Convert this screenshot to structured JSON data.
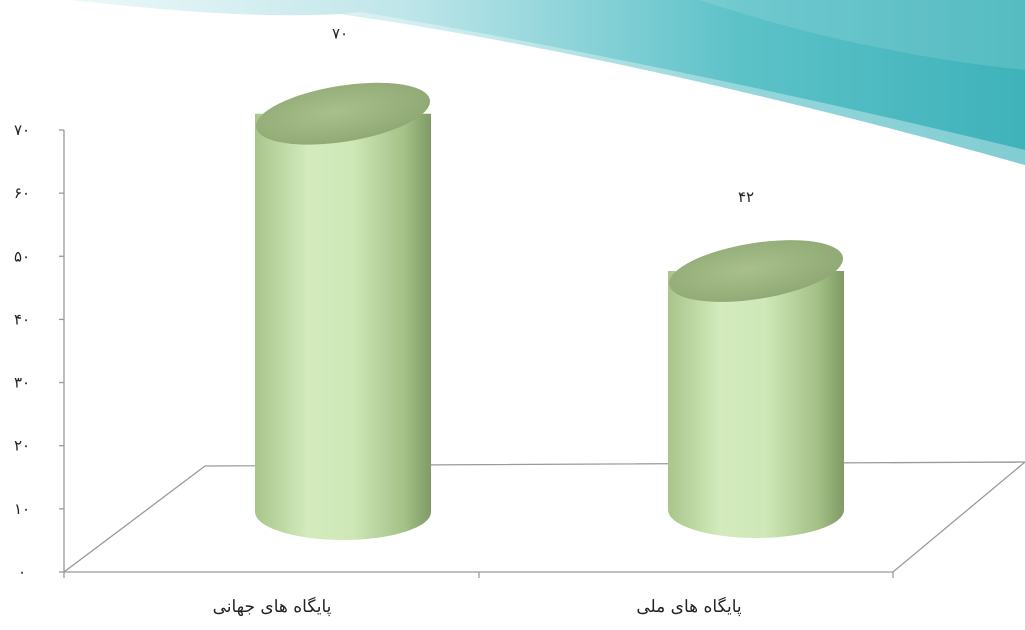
{
  "chart_data": {
    "type": "bar",
    "shape": "cylinder",
    "categories": [
      "پایگاه های جهانی",
      "پایگاه های ملی"
    ],
    "values": [
      70,
      42
    ],
    "value_labels": [
      "۷۰",
      "۴۲"
    ],
    "y_ticks": [
      0,
      10,
      20,
      30,
      40,
      50,
      60,
      70
    ],
    "y_tick_labels": [
      "۰",
      "۱۰",
      "۲۰",
      "۳۰",
      "۴۰",
      "۵۰",
      "۶۰",
      "۷۰"
    ],
    "ylim": [
      0,
      70
    ],
    "title": "",
    "xlabel": "",
    "ylabel": "",
    "grid": false,
    "legend": "none",
    "colors": {
      "bar_light": "#d5ecbf",
      "bar_mid": "#b4d198",
      "bar_dark": "#7f9a66",
      "bar_top": "#99b17d",
      "axis": "#9a9a9a",
      "banner_light": "#dff3f4",
      "banner_dark": "#54bfc6"
    }
  }
}
